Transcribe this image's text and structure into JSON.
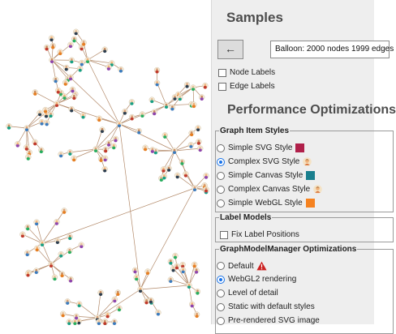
{
  "panel": {
    "title": "Samples",
    "back_button": "←",
    "sample_select_value": "Balloon: 2000 nodes 1999 edges",
    "node_labels": "Node Labels",
    "edge_labels": "Edge Labels",
    "section_title": "Performance Optimizations"
  },
  "graph_item_styles": {
    "legend": "Graph Item Styles",
    "options": [
      {
        "label": "Simple SVG Style",
        "selected": false
      },
      {
        "label": "Complex SVG Style",
        "selected": true
      },
      {
        "label": "Simple Canvas Style",
        "selected": false
      },
      {
        "label": "Complex Canvas Style",
        "selected": false
      },
      {
        "label": "Simple WebGL Style",
        "selected": false
      }
    ]
  },
  "label_models": {
    "legend": "Label Models",
    "fix_label_positions": "Fix Label Positions"
  },
  "gmm": {
    "legend": "GraphModelManager Optimizations",
    "options": [
      {
        "label": "Default",
        "selected": false
      },
      {
        "label": "WebGL2 rendering",
        "selected": true
      },
      {
        "label": "Level of detail",
        "selected": false
      },
      {
        "label": "Static with default styles",
        "selected": false
      },
      {
        "label": "Pre-rendered SVG image",
        "selected": false
      }
    ]
  },
  "colors": {
    "svg_swatch": "#b0204a",
    "canvas_swatch": "#1a7f8e",
    "webgl_swatch": "#f58220",
    "edge": "#b38a6a",
    "warning": "#cc2222"
  }
}
